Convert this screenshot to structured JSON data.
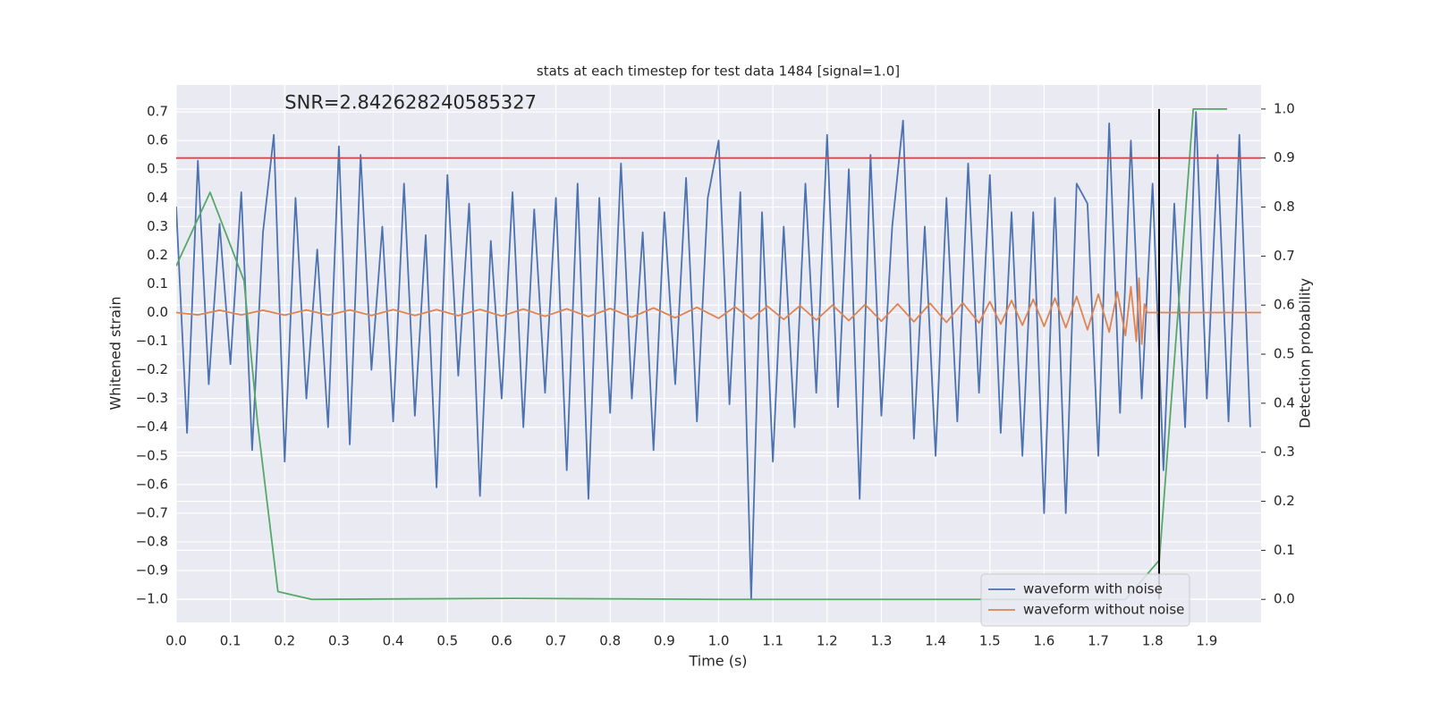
{
  "chart_data": {
    "type": "line",
    "title": "stats at each timestep for test data 1484 [signal=1.0]",
    "xlabel": "Time (s)",
    "ylabel": "Whitened strain",
    "y2label": "Detection probability",
    "annotation": {
      "text": "SNR=2.842628240585327",
      "x": 0.2,
      "y": 0.73
    },
    "xlim": [
      0,
      2.0
    ],
    "ylim": [
      -1.081,
      0.794
    ],
    "y2lim": [
      -0.047,
      1.049
    ],
    "xticks": [
      {
        "value": 0,
        "label": "0.0"
      },
      0.1,
      0.2,
      0.3,
      0.4,
      0.5,
      0.6,
      0.7,
      0.8,
      0.9,
      {
        "value": 1,
        "label": "1.0"
      },
      1.1,
      1.2,
      1.3,
      1.4,
      1.5,
      1.6,
      1.7,
      1.8,
      1.9
    ],
    "yticks": [
      {
        "value": -1,
        "label": "−1.0"
      },
      {
        "value": -0.9,
        "label": "−0.9"
      },
      {
        "value": -0.8,
        "label": "−0.8"
      },
      {
        "value": -0.7,
        "label": "−0.7"
      },
      {
        "value": -0.6,
        "label": "−0.6"
      },
      {
        "value": -0.5,
        "label": "−0.5"
      },
      {
        "value": -0.4,
        "label": "−0.4"
      },
      {
        "value": -0.3,
        "label": "−0.3"
      },
      {
        "value": -0.2,
        "label": "−0.2"
      },
      {
        "value": -0.1,
        "label": "−0.1"
      },
      {
        "value": 0,
        "label": "0.0"
      },
      0.1,
      0.2,
      0.3,
      0.4,
      0.5,
      0.6,
      0.7
    ],
    "y2ticks": [
      {
        "value": 0,
        "label": "0.0"
      },
      0.1,
      0.2,
      0.3,
      0.4,
      0.5,
      0.6,
      0.7,
      0.8,
      0.9,
      {
        "value": 1,
        "label": "1.0"
      }
    ],
    "grid": true,
    "legend": "lower right",
    "series": [
      {
        "name": "waveform with noise",
        "color": "#4c72b0",
        "x": [
          0,
          0.02,
          0.04,
          0.06,
          0.08,
          0.1,
          0.12,
          0.14,
          0.16,
          0.18,
          0.2,
          0.22,
          0.24,
          0.26,
          0.28,
          0.3,
          0.32,
          0.34,
          0.36,
          0.38,
          0.4,
          0.42,
          0.44,
          0.46,
          0.48,
          0.5,
          0.52,
          0.54,
          0.56,
          0.58,
          0.6,
          0.62,
          0.64,
          0.66,
          0.68,
          0.7,
          0.72,
          0.74,
          0.76,
          0.78,
          0.8,
          0.82,
          0.84,
          0.86,
          0.88,
          0.9,
          0.92,
          0.94,
          0.96,
          0.98,
          1.0,
          1.02,
          1.04,
          1.06,
          1.08,
          1.1,
          1.12,
          1.14,
          1.16,
          1.18,
          1.2,
          1.22,
          1.24,
          1.26,
          1.28,
          1.3,
          1.32,
          1.34,
          1.36,
          1.38,
          1.4,
          1.42,
          1.44,
          1.46,
          1.48,
          1.5,
          1.52,
          1.54,
          1.56,
          1.58,
          1.6,
          1.62,
          1.64,
          1.66,
          1.68,
          1.7,
          1.72,
          1.74,
          1.76,
          1.78,
          1.8,
          1.82,
          1.84,
          1.86,
          1.88,
          1.9,
          1.92,
          1.94,
          1.96,
          1.98
        ],
        "values": [
          0.37,
          -0.42,
          0.53,
          -0.25,
          0.31,
          -0.18,
          0.42,
          -0.48,
          0.28,
          0.62,
          -0.52,
          0.4,
          -0.3,
          0.22,
          -0.4,
          0.58,
          -0.46,
          0.55,
          -0.2,
          0.3,
          -0.38,
          0.45,
          -0.36,
          0.27,
          -0.61,
          0.48,
          -0.22,
          0.38,
          -0.64,
          0.25,
          -0.3,
          0.42,
          -0.4,
          0.36,
          -0.28,
          0.4,
          -0.55,
          0.45,
          -0.65,
          0.4,
          -0.35,
          0.52,
          -0.3,
          0.28,
          -0.48,
          0.35,
          -0.25,
          0.47,
          -0.38,
          0.4,
          0.6,
          -0.32,
          0.42,
          -1.0,
          0.35,
          -0.52,
          0.3,
          -0.4,
          0.45,
          -0.28,
          0.62,
          -0.33,
          0.5,
          -0.65,
          0.55,
          -0.36,
          0.3,
          0.67,
          -0.44,
          0.3,
          -0.5,
          0.4,
          -0.38,
          0.52,
          -0.28,
          0.48,
          -0.42,
          0.35,
          -0.5,
          0.35,
          -0.7,
          0.4,
          -0.7,
          0.45,
          0.38,
          -0.5,
          0.66,
          -0.35,
          0.6,
          -0.3,
          0.45,
          -0.55,
          0.38,
          -0.4,
          0.7,
          -0.3,
          0.55,
          -0.38,
          0.62,
          -0.4
        ]
      },
      {
        "name": "waveform without noise",
        "color": "#dd8452",
        "x": [
          0,
          0.04,
          0.08,
          0.12,
          0.16,
          0.2,
          0.24,
          0.28,
          0.32,
          0.36,
          0.4,
          0.44,
          0.48,
          0.52,
          0.56,
          0.6,
          0.64,
          0.68,
          0.72,
          0.76,
          0.8,
          0.84,
          0.88,
          0.92,
          0.96,
          1.0,
          1.03,
          1.06,
          1.09,
          1.12,
          1.15,
          1.18,
          1.21,
          1.24,
          1.27,
          1.3,
          1.33,
          1.36,
          1.39,
          1.42,
          1.45,
          1.48,
          1.5,
          1.52,
          1.54,
          1.56,
          1.58,
          1.6,
          1.62,
          1.64,
          1.66,
          1.68,
          1.7,
          1.72,
          1.735,
          1.75,
          1.76,
          1.77,
          1.775,
          1.78,
          1.785,
          1.79,
          2.0
        ],
        "values": [
          0,
          -0.008,
          0.008,
          -0.008,
          0.008,
          -0.009,
          0.009,
          -0.009,
          0.009,
          -0.01,
          0.01,
          -0.01,
          0.01,
          -0.011,
          0.011,
          -0.012,
          0.012,
          -0.013,
          0.013,
          -0.014,
          0.014,
          -0.016,
          0.016,
          -0.018,
          0.018,
          -0.02,
          0.02,
          -0.022,
          0.022,
          -0.024,
          0.024,
          -0.026,
          0.026,
          -0.028,
          0.028,
          -0.03,
          0.03,
          -0.032,
          0.032,
          -0.034,
          0.034,
          -0.036,
          0.038,
          -0.04,
          0.042,
          -0.044,
          0.046,
          -0.048,
          0.05,
          -0.053,
          0.056,
          -0.06,
          0.064,
          -0.068,
          0.072,
          -0.08,
          0.09,
          -0.1,
          0.12,
          -0.11,
          0.03,
          0,
          0
        ]
      },
      {
        "color": "#55a868",
        "axis": "y2",
        "x": [
          0,
          0.0625,
          0.125,
          0.15,
          0.1875,
          0.25,
          0.625,
          1.0,
          1.5,
          1.75,
          1.8125,
          1.875,
          1.9375
        ],
        "values": [
          0.68,
          0.83,
          0.65,
          0.36,
          0.016,
          0.0,
          0.002,
          0.0,
          0.0,
          0.0,
          0.08,
          1.0,
          1.0
        ]
      }
    ],
    "hlines": [
      {
        "y": 0.9,
        "color": "#c44e52",
        "axis": "y2"
      }
    ],
    "vlines": [
      {
        "x": 1.812,
        "ymin": 0,
        "ymax": 1,
        "color": "#000000",
        "axis": "y2"
      }
    ]
  }
}
